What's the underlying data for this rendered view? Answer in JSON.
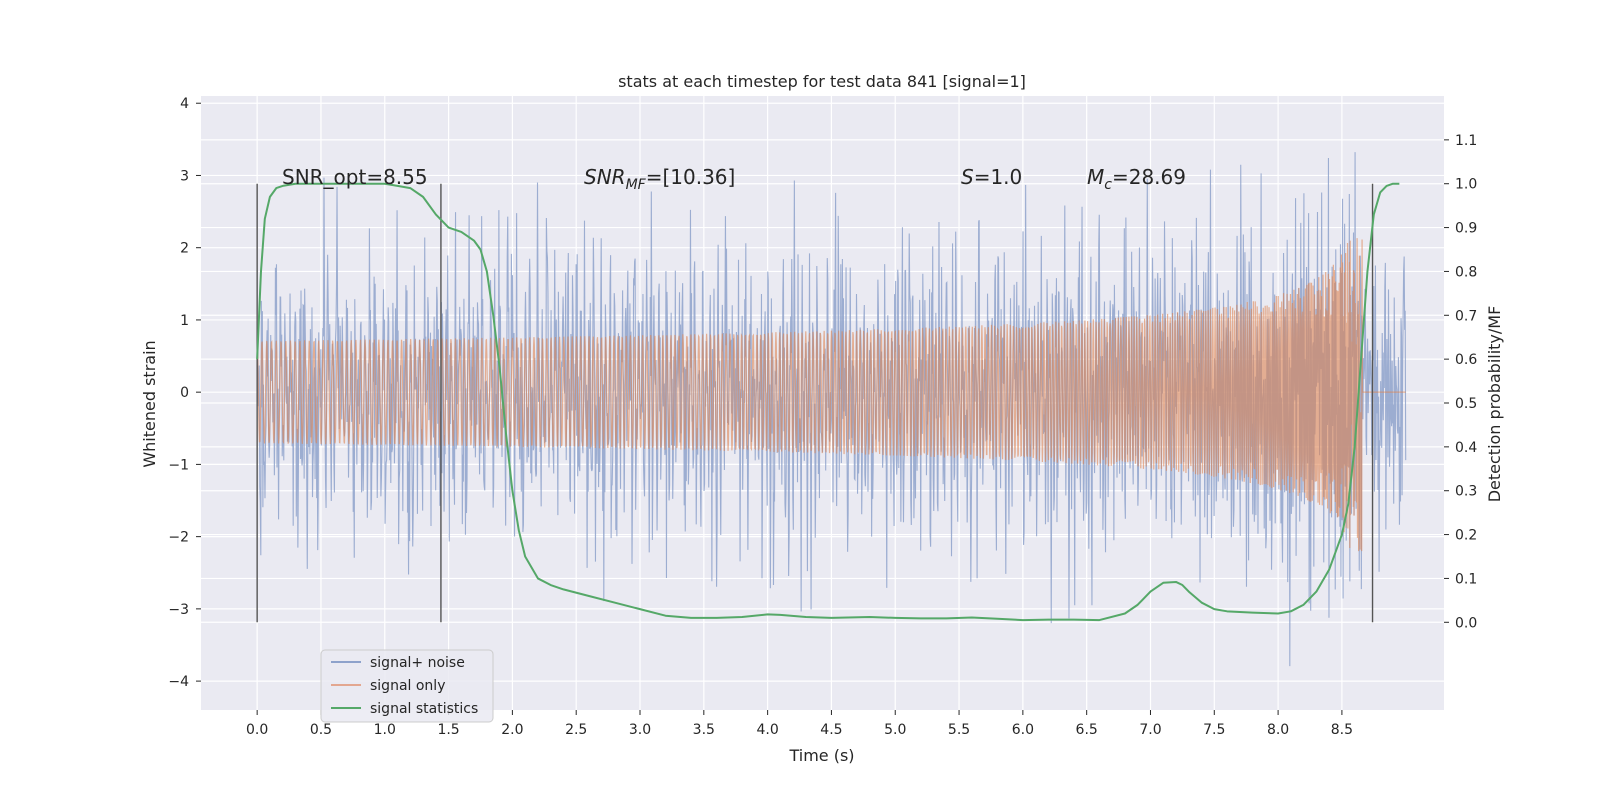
{
  "chart_data": {
    "type": "line",
    "title": "stats at each timestep for test data 841 [signal=1]",
    "xlabel": "Time (s)",
    "ylabel_left": "Whitened strain",
    "ylabel_right": "Detection probability/MF",
    "xlim": [
      -0.44,
      9.3
    ],
    "ylim_left": [
      -4.4,
      4.1
    ],
    "ylim_right": [
      -0.2,
      1.2
    ],
    "x_ticks": [
      "0.0",
      "0.5",
      "1.0",
      "1.5",
      "2.0",
      "2.5",
      "3.0",
      "3.5",
      "4.0",
      "4.5",
      "5.0",
      "5.5",
      "6.0",
      "6.5",
      "7.0",
      "7.5",
      "8.0",
      "8.5"
    ],
    "y_left_ticks": [
      "4",
      "3",
      "2",
      "1",
      "0",
      "−1",
      "−2",
      "−3",
      "−4"
    ],
    "y_right_ticks": [
      "1.1",
      "1.0",
      "0.9",
      "0.8",
      "0.7",
      "0.6",
      "0.5",
      "0.4",
      "0.3",
      "0.2",
      "0.1",
      "0.0"
    ],
    "grid": true,
    "legend_position": "bottom-left",
    "duration": 9.0,
    "noise_sigma": 0.85,
    "signal_only": {
      "merger_time": 8.66,
      "peak_amplitude": 2.2
    },
    "signal_statistics": {
      "x": [
        0.0,
        0.03,
        0.06,
        0.1,
        0.15,
        0.2,
        0.3,
        0.5,
        0.7,
        0.9,
        1.0,
        1.1,
        1.2,
        1.3,
        1.4,
        1.5,
        1.6,
        1.7,
        1.75,
        1.8,
        1.85,
        1.9,
        1.95,
        2.0,
        2.05,
        2.1,
        2.2,
        2.3,
        2.4,
        2.6,
        2.8,
        3.0,
        3.2,
        3.4,
        3.6,
        3.8,
        4.0,
        4.1,
        4.3,
        4.5,
        4.8,
        5.0,
        5.2,
        5.4,
        5.6,
        5.8,
        6.0,
        6.2,
        6.4,
        6.6,
        6.8,
        6.9,
        7.0,
        7.1,
        7.2,
        7.25,
        7.3,
        7.4,
        7.5,
        7.6,
        7.8,
        8.0,
        8.1,
        8.2,
        8.3,
        8.4,
        8.5,
        8.55,
        8.6,
        8.65,
        8.7,
        8.75,
        8.8,
        8.85,
        8.9,
        8.95
      ],
      "y": [
        0.6,
        0.8,
        0.92,
        0.97,
        0.99,
        0.995,
        1.0,
        1.0,
        1.0,
        1.0,
        1.0,
        0.995,
        0.99,
        0.97,
        0.93,
        0.9,
        0.89,
        0.87,
        0.85,
        0.8,
        0.7,
        0.58,
        0.43,
        0.3,
        0.21,
        0.15,
        0.1,
        0.085,
        0.075,
        0.06,
        0.045,
        0.03,
        0.015,
        0.01,
        0.01,
        0.012,
        0.018,
        0.017,
        0.012,
        0.01,
        0.012,
        0.01,
        0.009,
        0.009,
        0.011,
        0.008,
        0.005,
        0.006,
        0.006,
        0.005,
        0.02,
        0.04,
        0.07,
        0.09,
        0.092,
        0.085,
        0.07,
        0.045,
        0.03,
        0.025,
        0.022,
        0.02,
        0.025,
        0.04,
        0.07,
        0.12,
        0.2,
        0.27,
        0.4,
        0.6,
        0.8,
        0.93,
        0.98,
        0.995,
        1.0,
        1.0
      ]
    },
    "vertical_lines_x": [
      0.0,
      1.44,
      8.74
    ],
    "annotations": {
      "snr_opt": "SNR_opt=8.55",
      "snr_mf_main": "SNR",
      "snr_mf_sub": "MF",
      "snr_mf_value": "=[10.36]",
      "s_symbol": "S",
      "s_value": "=1.0",
      "mc_symbol": "M",
      "mc_sub": "c",
      "mc_value": "=28.69"
    },
    "legend": [
      {
        "label": "signal+ noise",
        "color": "#8ea2cb"
      },
      {
        "label": "signal only",
        "color": "#e3a790"
      },
      {
        "label": "signal statistics",
        "color": "#55a868"
      }
    ],
    "colors": {
      "plot_bg": "#eaeaf2",
      "grid": "#ffffff",
      "noise": "#8ea2cb",
      "signal": "#dd8452",
      "stats": "#55a868",
      "vline": "#555555"
    }
  }
}
